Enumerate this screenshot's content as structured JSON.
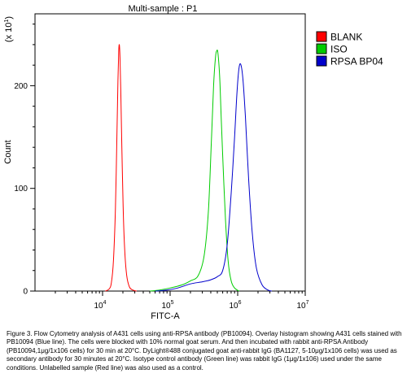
{
  "chart_data": {
    "type": "line",
    "title": "Multi-sample : P1",
    "xlabel": "FITC-A",
    "ylabel": "Count",
    "y_multiplier_label": "(x 10",
    "y_multiplier_exp": "1",
    "y_multiplier_close": ")",
    "x_scale": "log",
    "xlim": [
      1000,
      10000000
    ],
    "ylim": [
      0,
      270
    ],
    "x_ticks": [
      {
        "value": 10000,
        "base": "10",
        "exp": "4"
      },
      {
        "value": 100000,
        "base": "10",
        "exp": "5"
      },
      {
        "value": 1000000,
        "base": "10",
        "exp": "6"
      },
      {
        "value": 10000000,
        "base": "10",
        "exp": "7"
      }
    ],
    "y_ticks": [
      {
        "value": 0,
        "label": "0"
      },
      {
        "value": 100,
        "label": "100"
      },
      {
        "value": 200,
        "label": "200"
      }
    ],
    "grid": false,
    "legend_position": "right",
    "series": [
      {
        "name": "BLANK",
        "color": "#ff0000",
        "x": [
          11000,
          12500,
          13500,
          14500,
          15500,
          16300,
          16900,
          17300,
          17700,
          18100,
          18600,
          19300,
          20100,
          21200,
          22800,
          25000,
          28000,
          32000
        ],
        "y": [
          0,
          2,
          8,
          30,
          80,
          150,
          205,
          232,
          240,
          228,
          195,
          140,
          85,
          42,
          15,
          4,
          1,
          0
        ]
      },
      {
        "name": "ISO",
        "color": "#00cc00",
        "x": [
          50000,
          70000,
          100000,
          150000,
          200000,
          260000,
          320000,
          370000,
          410000,
          440000,
          470000,
          490000,
          510000,
          540000,
          570000,
          610000,
          660000,
          720000,
          800000,
          900000,
          1050000
        ],
        "y": [
          0,
          1,
          3,
          6,
          10,
          15,
          35,
          80,
          150,
          200,
          228,
          234,
          232,
          210,
          170,
          120,
          70,
          30,
          10,
          3,
          0
        ]
      },
      {
        "name": "RPSA BP04",
        "color": "#0000cc",
        "x": [
          60000,
          90000,
          130000,
          200000,
          300000,
          400000,
          500000,
          600000,
          700000,
          800000,
          900000,
          980000,
          1050000,
          1120000,
          1200000,
          1300000,
          1450000,
          1650000,
          1900000,
          2300000,
          2800000,
          3200000
        ],
        "y": [
          0,
          1,
          3,
          7,
          9,
          11,
          14,
          20,
          45,
          95,
          150,
          195,
          218,
          220,
          205,
          170,
          110,
          55,
          22,
          6,
          1,
          0
        ]
      }
    ]
  },
  "caption": {
    "text": "Figure 3. Flow Cytometry analysis of A431 cells using anti-RPSA antibody (PB10094).  Overlay histogram showing A431 cells stained with PB10094 (Blue line). The cells were blocked with 10% normal goat serum. And then incubated with rabbit anti-RPSA Antibody (PB10094,1μg/1x106 cells) for 30 min at 20°C. DyLight®488 conjugated goat anti-rabbit IgG (BA1127, 5-10μg/1x106 cells) was used as secondary antibody for 30 minutes at 20°C. Isotype control antibody (Green line) was rabbit IgG (1μg/1x106) used under the same conditions. Unlabelled sample (Red line) was also used as a control."
  }
}
